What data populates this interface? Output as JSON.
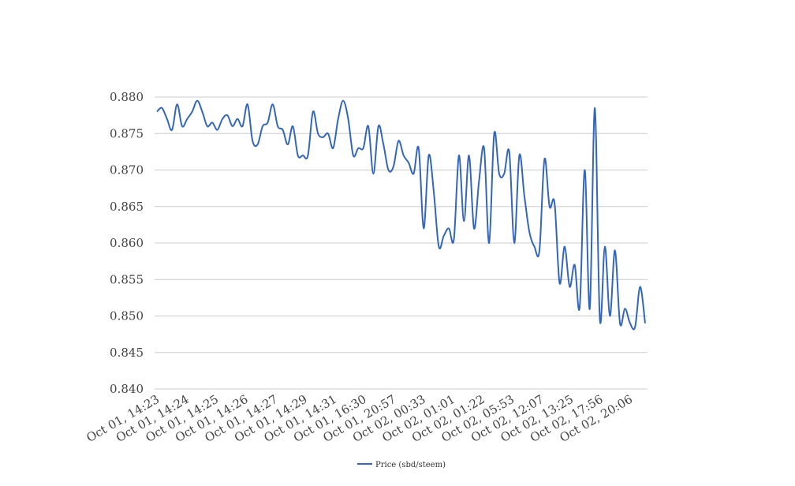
{
  "chart_data": {
    "type": "line",
    "title": "",
    "xlabel": "",
    "ylabel": "",
    "ylim": [
      0.84,
      0.88
    ],
    "y_ticks": [
      "0.840",
      "0.845",
      "0.850",
      "0.855",
      "0.860",
      "0.865",
      "0.870",
      "0.875",
      "0.880"
    ],
    "x_tick_labels": [
      "Oct 01, 14:23",
      "Oct 01, 14:24",
      "Oct 01, 14:25",
      "Oct 01, 14:26",
      "Oct 01, 14:27",
      "Oct 01, 14:29",
      "Oct 01, 14:31",
      "Oct 01, 16:30",
      "Oct 01, 20:57",
      "Oct 02, 00:33",
      "Oct 02, 01:01",
      "Oct 02, 01:22",
      "Oct 02, 05:53",
      "Oct 02, 12:07",
      "Oct 02, 13:25",
      "Oct 02, 17:56",
      "Oct 02, 20:06"
    ],
    "grid": true,
    "legend_position": "bottom-center",
    "series": [
      {
        "name": "Price (sbd/steem)",
        "color": "#3366bb",
        "values": [
          0.878,
          0.8785,
          0.877,
          0.8755,
          0.879,
          0.876,
          0.877,
          0.878,
          0.8795,
          0.878,
          0.876,
          0.8765,
          0.8755,
          0.877,
          0.8775,
          0.876,
          0.877,
          0.876,
          0.879,
          0.874,
          0.8735,
          0.876,
          0.8765,
          0.879,
          0.876,
          0.8755,
          0.8735,
          0.876,
          0.872,
          0.872,
          0.872,
          0.878,
          0.875,
          0.8745,
          0.875,
          0.873,
          0.877,
          0.8795,
          0.877,
          0.872,
          0.873,
          0.873,
          0.876,
          0.8695,
          0.876,
          0.8735,
          0.87,
          0.8705,
          0.874,
          0.872,
          0.871,
          0.8695,
          0.873,
          0.862,
          0.872,
          0.867,
          0.8595,
          0.861,
          0.862,
          0.8605,
          0.872,
          0.863,
          0.872,
          0.862,
          0.8685,
          0.873,
          0.86,
          0.875,
          0.8695,
          0.8695,
          0.8725,
          0.86,
          0.872,
          0.8665,
          0.8615,
          0.8595,
          0.859,
          0.8715,
          0.865,
          0.8655,
          0.8545,
          0.8595,
          0.854,
          0.857,
          0.8512,
          0.87,
          0.851,
          0.8785,
          0.8495,
          0.8595,
          0.85,
          0.859,
          0.849,
          0.851,
          0.849,
          0.8485,
          0.854,
          0.849
        ]
      }
    ]
  }
}
